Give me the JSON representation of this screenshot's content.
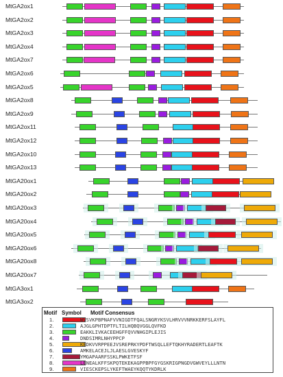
{
  "colors": {
    "1": "#e8121b",
    "2": "#2dd0ee",
    "3": "#38d42c",
    "4": "#9a1ce0",
    "5": "#eeaa08",
    "6": "#2a44e4",
    "7": "#a51a3a",
    "8": "#e535c8",
    "9": "#ef7417"
  },
  "genes": [
    {
      "name": "MtGA2ox1",
      "motifs": [
        3,
        8,
        3,
        4,
        2,
        1,
        9
      ]
    },
    {
      "name": "MtGA2ox2",
      "motifs": [
        3,
        8,
        3,
        4,
        2,
        1,
        9
      ]
    },
    {
      "name": "MtGA2ox3",
      "motifs": [
        3,
        8,
        3,
        4,
        2,
        1,
        9
      ]
    },
    {
      "name": "MtGA2ox4",
      "motifs": [
        3,
        8,
        3,
        4,
        2,
        1,
        9
      ]
    },
    {
      "name": "MtGA2ox7",
      "motifs": [
        3,
        8,
        3,
        4,
        2,
        1,
        9
      ]
    },
    {
      "name": "MtGA2ox6",
      "motifs": [
        3,
        3,
        4,
        2,
        1,
        9
      ]
    },
    {
      "name": "MtGA2ox5",
      "motifs": [
        3,
        8,
        3,
        4,
        2,
        1,
        9
      ]
    },
    {
      "name": "MtGA2ox8",
      "motifs": [
        3,
        6,
        3,
        4,
        2,
        1,
        9
      ]
    },
    {
      "name": "MtGA2ox9",
      "motifs": [
        3,
        6,
        3,
        4,
        2,
        1,
        9
      ]
    },
    {
      "name": "MtGA2ox11",
      "motifs": [
        3,
        6,
        3,
        2,
        1,
        9
      ]
    },
    {
      "name": "MtGA2ox12",
      "motifs": [
        3,
        6,
        3,
        4,
        2,
        1,
        9
      ]
    },
    {
      "name": "MtGA2ox10",
      "motifs": [
        3,
        6,
        3,
        4,
        2,
        1,
        9
      ]
    },
    {
      "name": "MtGA2ox13",
      "motifs": [
        3,
        6,
        3,
        4,
        2,
        1,
        9
      ]
    },
    {
      "name": "MtGA20ox1",
      "motifs": [
        3,
        6,
        3,
        4,
        2,
        1,
        5
      ]
    },
    {
      "name": "MtGA20ox2",
      "motifs": [
        3,
        6,
        3,
        4,
        2,
        1,
        5
      ]
    },
    {
      "name": "MtGA20ox3",
      "motifs": [
        3,
        6,
        3,
        4,
        2,
        7,
        5
      ]
    },
    {
      "name": "MtGA20ox4",
      "motifs": [
        3,
        6,
        3,
        4,
        2,
        7,
        5
      ]
    },
    {
      "name": "MtGA20ox5",
      "motifs": [
        3,
        6,
        3,
        4,
        2,
        1,
        5
      ]
    },
    {
      "name": "MtGA20ox6",
      "motifs": [
        3,
        6,
        3,
        4,
        2,
        7,
        5
      ]
    },
    {
      "name": "MtGA20ox8",
      "motifs": [
        3,
        6,
        3,
        4,
        2,
        1,
        5
      ]
    },
    {
      "name": "MtGA20ox7",
      "motifs": [
        3,
        6,
        4,
        2,
        7,
        5
      ]
    },
    {
      "name": "MtGA3ox1",
      "motifs": [
        3,
        6,
        3,
        2,
        1,
        9
      ]
    },
    {
      "name": "MtGA3ox2",
      "motifs": [
        3,
        6,
        3,
        1
      ]
    }
  ],
  "legend": {
    "header_motif": "Motif",
    "header_symbol": "Symbol",
    "header_consensus": "Motif Consensus",
    "rows": [
      {
        "num": "1.",
        "color_key": "1",
        "consensus": "WVSVKPBPNAFVVNIGDTFQALSNGRYKSVLHRVVVNRKKERFSLAYFL"
      },
      {
        "num": "2.",
        "color_key": "2",
        "consensus": "AJGLGPHTDPTFLTILHQBQVGGLQVFKD"
      },
      {
        "num": "3.",
        "color_key": "3",
        "consensus": "EAKKLIVKACEEHGFFQVVNHGIPLEJIS"
      },
      {
        "num": "4.",
        "color_key": "4",
        "consensus": "DNDSIMRLNHYPPCP"
      },
      {
        "num": "5.",
        "color_key": "5",
        "consensus": "KEDKVVRPPEEJVSREPRKYPDFTWSQLLEFTQKHYRADERTLEAFTK"
      },
      {
        "num": "6.",
        "color_key": "6",
        "consensus": "AMKELACEJLJLAESLGVESKYF"
      },
      {
        "num": "7.",
        "color_key": "7",
        "consensus": "YMGAPAARFSSKLPWKETFSF"
      },
      {
        "num": "8.",
        "color_key": "8",
        "consensus": "LENEALKFFSKPQTEKEKAGPPBPFGYGSKRIGPNGDVGWVEYLLLNTN"
      },
      {
        "num": "9.",
        "color_key": "9",
        "consensus": "VIESCKEPSLYKEFTWAEYKQQTYKDRLK"
      }
    ]
  }
}
